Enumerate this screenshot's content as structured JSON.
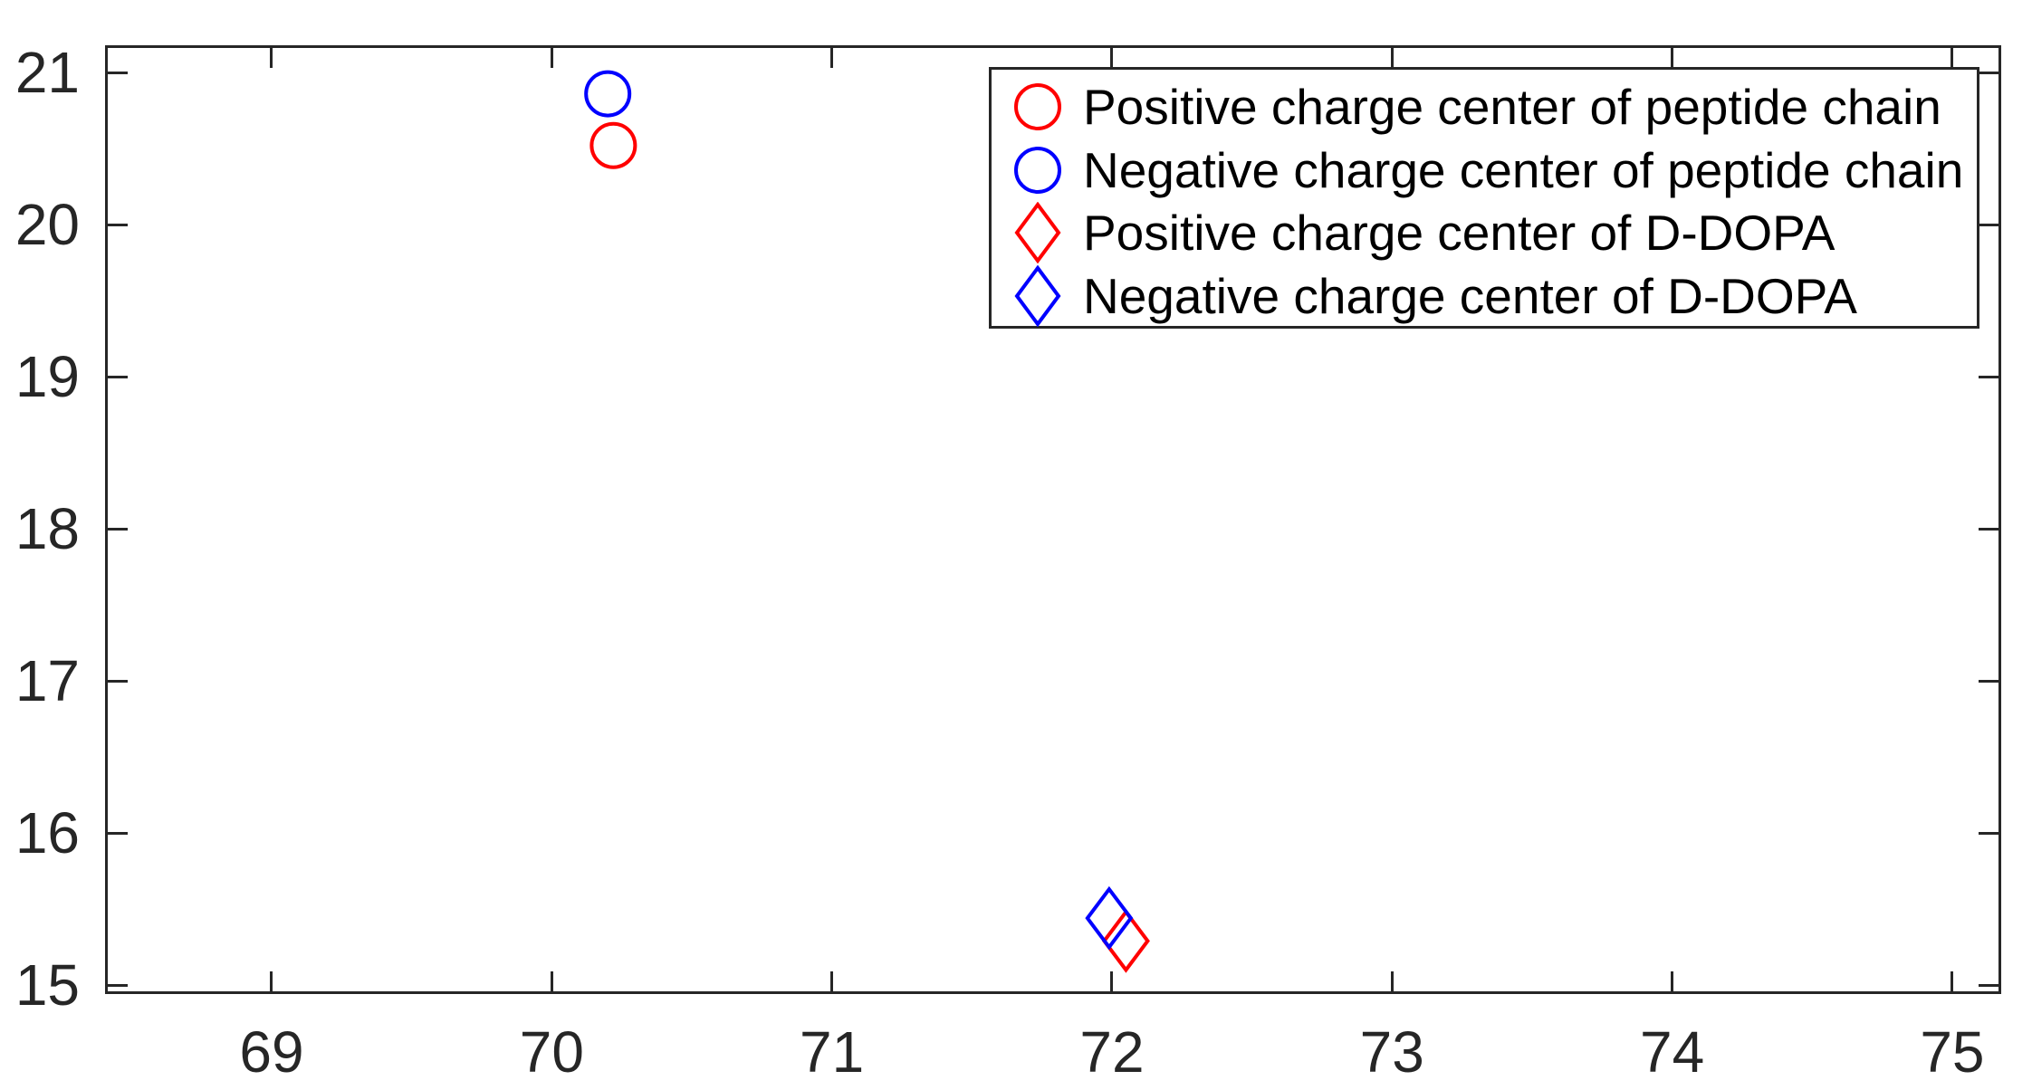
{
  "figure": {
    "background": "#ffffff",
    "axes_color": "#262626",
    "tick_label_color": "#262626",
    "legend_text_color": "#000000"
  },
  "chart_data": {
    "type": "scatter",
    "title": "",
    "xlabel": "",
    "ylabel": "",
    "xlim": [
      68.41,
      75.17
    ],
    "ylim": [
      14.95,
      21.17
    ],
    "x_ticks": [
      69,
      70,
      71,
      72,
      73,
      74,
      75
    ],
    "y_ticks": [
      15,
      16,
      17,
      18,
      19,
      20,
      21
    ],
    "x_tick_labels": [
      "69",
      "70",
      "71",
      "72",
      "73",
      "74",
      "75"
    ],
    "y_tick_labels": [
      "15",
      "16",
      "17",
      "18",
      "19",
      "20",
      "21"
    ],
    "grid": false,
    "legend_position": "top-right",
    "series": [
      {
        "name": "Positive charge center of peptide chain",
        "marker": "circle",
        "color": "#ff0000",
        "points": [
          [
            70.22,
            20.52
          ]
        ]
      },
      {
        "name": "Negative charge center of peptide chain",
        "marker": "circle",
        "color": "#0000ff",
        "points": [
          [
            70.2,
            20.86
          ]
        ]
      },
      {
        "name": "Positive charge center of D-DOPA",
        "marker": "diamond",
        "color": "#ff0000",
        "points": [
          [
            72.05,
            15.29
          ]
        ]
      },
      {
        "name": "Negative charge center of D-DOPA",
        "marker": "diamond",
        "color": "#0000ff",
        "points": [
          [
            71.99,
            15.44
          ]
        ]
      }
    ]
  }
}
